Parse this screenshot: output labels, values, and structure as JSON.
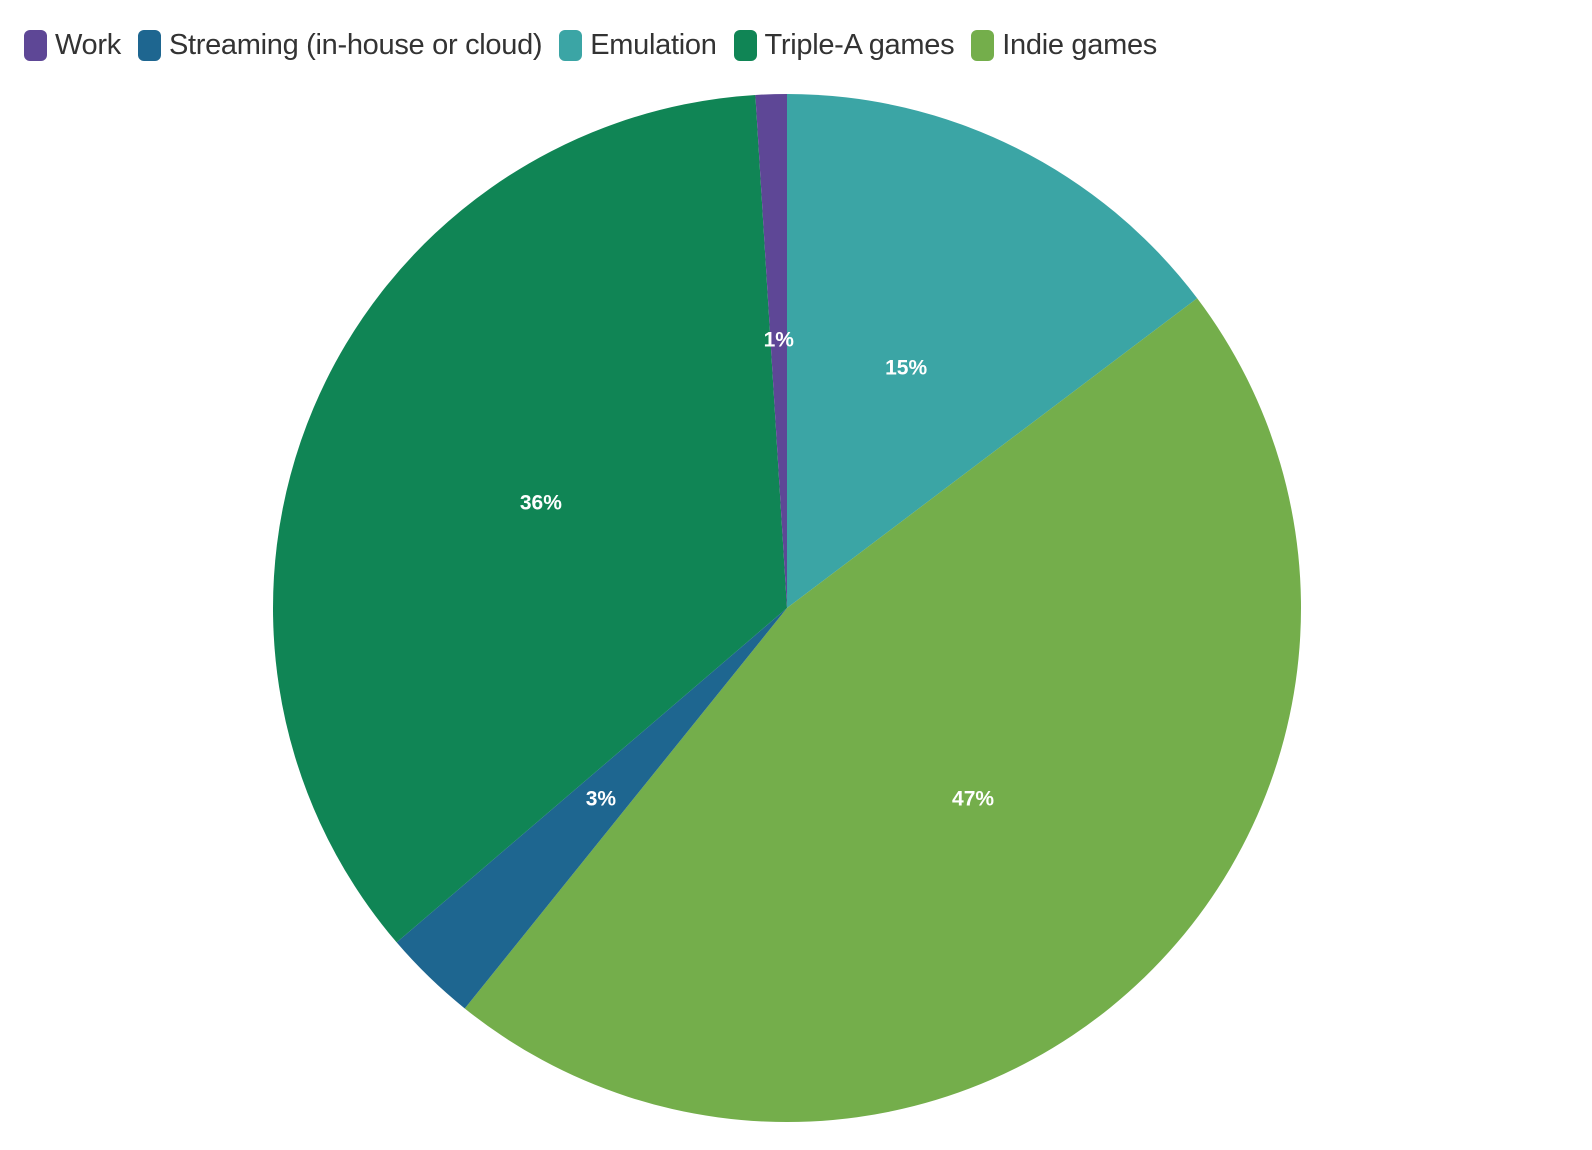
{
  "chart_data": {
    "type": "pie",
    "title": "",
    "legend_position": "top-left",
    "categories": [
      "Work",
      "Streaming (in-house or cloud)",
      "Emulation",
      "Triple-A games",
      "Indie games"
    ],
    "values": [
      1,
      3,
      15,
      36,
      47
    ],
    "value_labels": [
      "1%",
      "3%",
      "15%",
      "36%",
      "47%"
    ],
    "colors": [
      "#5e4796",
      "#1e6690",
      "#3ba5a5",
      "#108555",
      "#74ae4b"
    ],
    "slice_order_clockwise_from_top": [
      2,
      4,
      1,
      3,
      0
    ]
  }
}
